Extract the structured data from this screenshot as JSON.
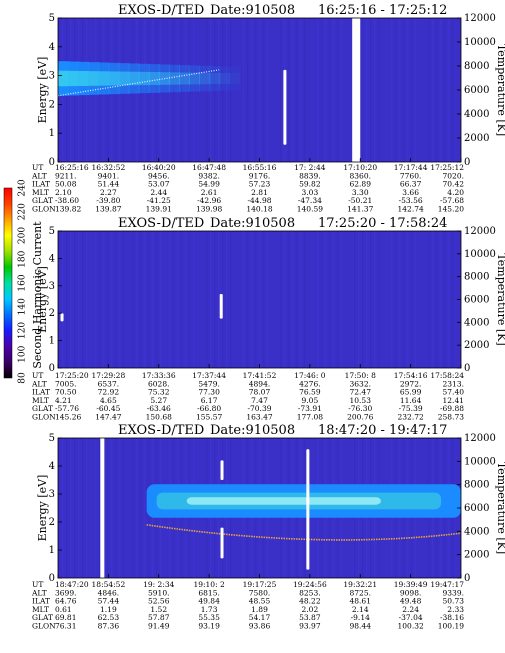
{
  "colorbar": {
    "label": "Second Harmonic Current",
    "ticks": [
      "80",
      "100",
      "120",
      "140",
      "160",
      "180",
      "200",
      "220",
      "240"
    ],
    "colors": [
      "#000000",
      "#3a0066",
      "#4b00aa",
      "#1a1aff",
      "#0070ff",
      "#00c8ff",
      "#00e0a0",
      "#00c800",
      "#a0e000",
      "#ffff00",
      "#ffa000",
      "#ff4000",
      "#ff0000"
    ]
  },
  "background_color": "#3a30c8",
  "panels": [
    {
      "title": "EXOS-D/TED",
      "date": "Date:910508",
      "time_range": "16:25:16 - 17:25:12",
      "ylabel": "Energy [eV]",
      "y2label": "Temperature [K]",
      "yticks": [
        "0",
        "1",
        "2",
        "3",
        "4",
        "5"
      ],
      "y2ticks": [
        "0",
        "2000",
        "4000",
        "6000",
        "8000",
        "10000",
        "12000"
      ],
      "ephem_labels": [
        "UT",
        "ALT",
        "ILAT",
        "MLT",
        "GLAT",
        "GLON"
      ],
      "ephem": [
        [
          "16:25:16",
          "9211.",
          "50.08",
          "2.10",
          "-38.60",
          "139.82"
        ],
        [
          "16:32:52",
          "9401.",
          "51.44",
          "2.27",
          "-39.80",
          "139.87"
        ],
        [
          "16:40:20",
          "9456.",
          "53.07",
          "2.44",
          "-41.25",
          "139.91"
        ],
        [
          "16:47:48",
          "9382.",
          "54.99",
          "2.61",
          "-42.96",
          "139.98"
        ],
        [
          "16:55:16",
          "9176.",
          "57.23",
          "2.81",
          "-44.98",
          "140.18"
        ],
        [
          "17: 2:44",
          "8839.",
          "59.82",
          "3.03",
          "-47.34",
          "140.59"
        ],
        [
          "17:10:20",
          "8360.",
          "62.89",
          "3.30",
          "-50.21",
          "141.37"
        ],
        [
          "17:17:44",
          "7760.",
          "66.37",
          "3.66",
          "-53.56",
          "142.74"
        ],
        [
          "17:25:12",
          "7020.",
          "70.42",
          "4.20",
          "-57.68",
          "145.20"
        ]
      ],
      "chart_data": {
        "type": "heatmap",
        "x": [
          "16:25:16",
          "16:32:52",
          "16:40:20",
          "16:47:48",
          "16:55:16",
          "17: 2:44",
          "17:10:20",
          "17:17:44",
          "17:25:12"
        ],
        "ylim": [
          0,
          5
        ],
        "y2lim": [
          0,
          12000
        ],
        "band": {
          "center_ev": 2.9,
          "half_width_ev_start": 0.6,
          "half_width_ev_end": 0.15,
          "fade_end_fraction": 0.45
        },
        "temperature_trace": {
          "y_ev_start": 2.3,
          "y_ev_end": 3.2,
          "x_end_fraction": 0.4
        },
        "data_gaps": [
          {
            "x_fraction_start": 0.73,
            "x_fraction_end": 0.75
          }
        ],
        "spikes": [
          {
            "x_fraction": 0.563,
            "y_ev_low": 0.6,
            "y_ev_high": 3.2
          }
        ]
      }
    },
    {
      "title": "EXOS-D/TED",
      "date": "Date:910508",
      "time_range": "17:25:20 - 17:58:24",
      "ylabel": "Energy [eV]",
      "y2label": "Temperature [K]",
      "yticks": [
        "0",
        "1",
        "2",
        "3",
        "4",
        "5"
      ],
      "y2ticks": [
        "0",
        "2000",
        "4000",
        "6000",
        "8000",
        "10000",
        "12000"
      ],
      "ephem_labels": [
        "UT",
        "ALT",
        "ILAT",
        "MLT",
        "GLAT",
        "GLON"
      ],
      "ephem": [
        [
          "17:25:20",
          "7005.",
          "70.50",
          "4.21",
          "-57.76",
          "145.26"
        ],
        [
          "17:29:28",
          "6537.",
          "72.92",
          "4.65",
          "-60.45",
          "147.47"
        ],
        [
          "17:33:36",
          "6028.",
          "75.32",
          "5.27",
          "-63.46",
          "150.68"
        ],
        [
          "17:37:44",
          "5479.",
          "77.30",
          "6.17",
          "-66.80",
          "155.57"
        ],
        [
          "17:41:52",
          "4894.",
          "78.07",
          "7.47",
          "-70.39",
          "163.47"
        ],
        [
          "17:46: 0",
          "4276.",
          "76.59",
          "9.05",
          "-73.91",
          "177.08"
        ],
        [
          "17:50: 8",
          "3632.",
          "72.47",
          "10.53",
          "-76.30",
          "200.76"
        ],
        [
          "17:54:16",
          "2972.",
          "65.99",
          "11.64",
          "-75.39",
          "232.72"
        ],
        [
          "17:58:24",
          "2313.",
          "57.40",
          "12.41",
          "-69.88",
          "258.73"
        ]
      ],
      "chart_data": {
        "type": "heatmap",
        "x": [
          "17:25:20",
          "17:29:28",
          "17:33:36",
          "17:37:44",
          "17:41:52",
          "17:46: 0",
          "17:50: 8",
          "17:54:16",
          "17:58:24"
        ],
        "ylim": [
          0,
          5
        ],
        "y2lim": [
          0,
          12000
        ],
        "spikes": [
          {
            "x_fraction": 0.405,
            "y_ev_low": 1.8,
            "y_ev_high": 2.7
          },
          {
            "x_fraction": 0.01,
            "y_ev_low": 1.7,
            "y_ev_high": 2.0
          }
        ]
      }
    },
    {
      "title": "EXOS-D/TED",
      "date": "Date:910508",
      "time_range": "18:47:20 - 19:47:17",
      "ylabel": "Energy [eV]",
      "y2label": "Temperature [K]",
      "yticks": [
        "0",
        "1",
        "2",
        "3",
        "4",
        "5"
      ],
      "y2ticks": [
        "0",
        "2000",
        "4000",
        "6000",
        "8000",
        "10000",
        "12000"
      ],
      "ephem_labels": [
        "UT",
        "ALT",
        "ILAT",
        "MLT",
        "GLAT",
        "GLON"
      ],
      "ephem": [
        [
          "18:47:20",
          "3699.",
          "64.76",
          "0.61",
          "69.81",
          "76.31"
        ],
        [
          "18:54:52",
          "4846.",
          "57.44",
          "1.19",
          "62.53",
          "87.36"
        ],
        [
          "19: 2:34",
          "5910.",
          "52.56",
          "1.52",
          "57.87",
          "91.49"
        ],
        [
          "19:10: 2",
          "6815.",
          "49.84",
          "1.73",
          "55.35",
          "93.19"
        ],
        [
          "19:17:25",
          "7580.",
          "48.55",
          "1.89",
          "54.17",
          "93.86"
        ],
        [
          "19:24:56",
          "8253.",
          "48.22",
          "2.02",
          "53.87",
          "93.97"
        ],
        [
          "19:32:21",
          "8725.",
          "48.61",
          "2.14",
          "-9.14",
          "98.44"
        ],
        [
          "19:39:49",
          "9098.",
          "49.48",
          "2.24",
          "-37.04",
          "100.32"
        ],
        [
          "19:47:17",
          "9339.",
          "50.73",
          "2.33",
          "-38.16",
          "100.19"
        ]
      ],
      "chart_data": {
        "type": "heatmap",
        "x": [
          "18:47:20",
          "18:54:52",
          "19: 2:34",
          "19:10: 2",
          "19:17:25",
          "19:24:56",
          "19:32:21",
          "19:39:49",
          "19:47:17"
        ],
        "ylim": [
          0,
          5
        ],
        "y2lim": [
          0,
          12000
        ],
        "band": {
          "center_ev": 2.75,
          "half_width_ev": 0.6,
          "x_fraction_start": 0.22
        },
        "temperature_trace": {
          "y_ev_start": 1.9,
          "y_ev_min": 1.3,
          "y_ev_end": 1.6,
          "x_fraction_start": 0.22
        },
        "data_gaps": [
          {
            "x_fraction_start": 0.105,
            "x_fraction_end": 0.115
          }
        ],
        "spikes": [
          {
            "x_fraction": 0.407,
            "y_ev_low": 0.7,
            "y_ev_high": 1.8
          },
          {
            "x_fraction": 0.407,
            "y_ev_low": 3.5,
            "y_ev_high": 4.2
          },
          {
            "x_fraction": 0.62,
            "y_ev_low": 0.3,
            "y_ev_high": 4.6
          }
        ]
      }
    }
  ]
}
